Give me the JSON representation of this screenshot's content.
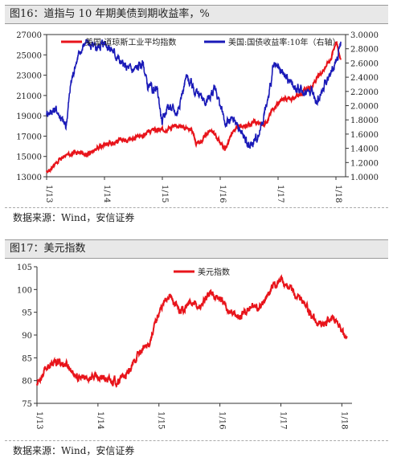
{
  "charts": [
    {
      "heading": "图16：道指与 10 年期美债到期收益率，%",
      "source": "数据来源：Wind，安信证券",
      "left_ticks": [
        "27000",
        "25000",
        "23000",
        "21000",
        "19000",
        "17000",
        "15000",
        "13000"
      ],
      "right_ticks": [
        "3.0000",
        "2.8000",
        "2.6000",
        "2.4000",
        "2.2000",
        "2.0000",
        "1.8000",
        "1.6000",
        "1.4000",
        "1.2000",
        "1.0000"
      ],
      "x_ticks": [
        "2013-01-01",
        "2014-01-01",
        "2015-01-01",
        "2016-01-01",
        "2017-01-01",
        "2018-01-01"
      ],
      "colors": {
        "primary": "#e8141b",
        "secondary": "#1a1ab8"
      }
    },
    {
      "heading": "图17：美元指数",
      "source": "数据来源：Wind，安信证券",
      "left_ticks": [
        "105",
        "100",
        "95",
        "90",
        "85",
        "80",
        "75"
      ],
      "x_ticks": [
        "2013-01-01",
        "2014-01-01",
        "2015-01-01",
        "2016-01-01",
        "2017-01-01",
        "2018-01-01"
      ],
      "colors": {
        "primary": "#e8141b"
      }
    }
  ],
  "chart_data": [
    {
      "type": "line",
      "title": "图16：道指与 10 年期美债到期收益率，%",
      "y_left_lim": [
        13000,
        27000
      ],
      "y_right_lim": [
        1.0,
        3.0
      ],
      "x_range": [
        "2013-01-01",
        "2018-03-01"
      ],
      "legend_position": "top",
      "series": [
        {
          "name": "美国:道琼斯工业平均指数",
          "axis": "left",
          "color": "#e8141b",
          "x": [
            "2013-01",
            "2013-03",
            "2013-05",
            "2013-07",
            "2013-09",
            "2013-11",
            "2014-01",
            "2014-03",
            "2014-05",
            "2014-07",
            "2014-09",
            "2014-11",
            "2015-01",
            "2015-03",
            "2015-05",
            "2015-07",
            "2015-08",
            "2015-09",
            "2015-11",
            "2016-01",
            "2016-02",
            "2016-04",
            "2016-06",
            "2016-08",
            "2016-10",
            "2016-11",
            "2016-12",
            "2017-02",
            "2017-04",
            "2017-06",
            "2017-08",
            "2017-10",
            "2017-12",
            "2018-01",
            "2018-02"
          ],
          "values": [
            13400,
            14400,
            15100,
            15500,
            15100,
            15700,
            16200,
            16400,
            16700,
            16800,
            17100,
            17600,
            17600,
            17900,
            18000,
            17700,
            16300,
            16400,
            17700,
            16400,
            15700,
            17700,
            17900,
            18400,
            18100,
            18800,
            19800,
            20600,
            20700,
            21300,
            21900,
            23300,
            24700,
            26400,
            24600
          ]
        },
        {
          "name": "美国:国债收益率:10年（右轴）",
          "axis": "right",
          "color": "#1a1ab8",
          "x": [
            "2013-01",
            "2013-03",
            "2013-05",
            "2013-06",
            "2013-07",
            "2013-09",
            "2013-11",
            "2014-01",
            "2014-03",
            "2014-05",
            "2014-07",
            "2014-09",
            "2014-10",
            "2014-12",
            "2015-01",
            "2015-02",
            "2015-04",
            "2015-06",
            "2015-08",
            "2015-10",
            "2015-12",
            "2016-02",
            "2016-04",
            "2016-06",
            "2016-07",
            "2016-09",
            "2016-11",
            "2016-12",
            "2017-02",
            "2017-04",
            "2017-06",
            "2017-08",
            "2017-09",
            "2017-11",
            "2018-01",
            "2018-02"
          ],
          "values": [
            1.9,
            1.95,
            1.7,
            2.3,
            2.6,
            2.9,
            2.8,
            2.9,
            2.75,
            2.55,
            2.5,
            2.6,
            2.25,
            2.2,
            1.75,
            2.0,
            1.9,
            2.4,
            2.2,
            2.05,
            2.25,
            1.75,
            1.8,
            1.55,
            1.4,
            1.6,
            2.1,
            2.55,
            2.45,
            2.3,
            2.2,
            2.2,
            2.05,
            2.35,
            2.6,
            2.9
          ]
        }
      ]
    },
    {
      "type": "line",
      "title": "图17：美元指数",
      "y_lim": [
        75,
        105
      ],
      "x_range": [
        "2013-01-01",
        "2018-03-01"
      ],
      "legend_position": "top",
      "series": [
        {
          "name": "美元指数",
          "color": "#e8141b",
          "x": [
            "2013-01",
            "2013-03",
            "2013-05",
            "2013-07",
            "2013-09",
            "2013-11",
            "2014-01",
            "2014-03",
            "2014-05",
            "2014-07",
            "2014-09",
            "2014-11",
            "2015-01",
            "2015-03",
            "2015-05",
            "2015-07",
            "2015-09",
            "2015-11",
            "2016-01",
            "2016-03",
            "2016-05",
            "2016-07",
            "2016-09",
            "2016-11",
            "2017-01",
            "2017-03",
            "2017-05",
            "2017-07",
            "2017-09",
            "2017-11",
            "2018-01",
            "2018-02"
          ],
          "values": [
            79.5,
            83,
            84,
            83.5,
            80.5,
            80.5,
            81,
            80,
            80,
            81.5,
            86,
            88,
            95,
            99,
            95,
            97,
            96,
            99.5,
            98,
            95,
            94,
            96,
            96,
            100,
            102.5,
            100,
            98,
            94,
            92,
            94,
            90.5,
            89.5
          ]
        }
      ]
    }
  ]
}
